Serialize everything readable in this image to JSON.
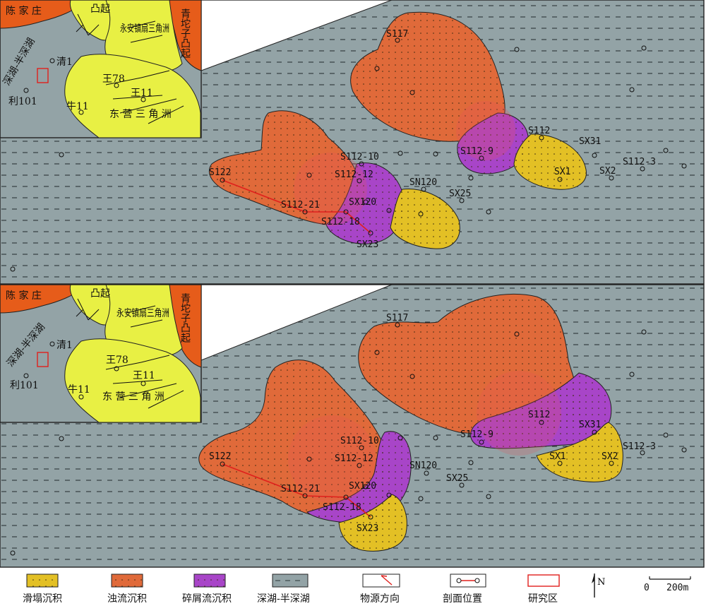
{
  "colors": {
    "lake": "#93a3a6",
    "slump": "#e3c025",
    "turbidite": "#e06a3a",
    "debris": "#a845c8",
    "uplift": "#e65c1a",
    "delta": "#e8f044",
    "frame": "#222222",
    "section_line": "#e0201c",
    "study_area": "#e0201c"
  },
  "inset_labels": {
    "chenjiazhuang": "陈 家 庄",
    "tuqi": "凸起",
    "qingtuozi": "青坨子凸起",
    "yongan": "永安镇扇三角洲",
    "shenhu": "深湖-半深湖",
    "qing1": "清1",
    "wang78": "王78",
    "wang11": "王11",
    "li101": "利101",
    "niu11": "牛11",
    "dongying": "东 营 三 角 洲"
  },
  "top_panel": {
    "wells": {
      "s117": "S117",
      "s112": "S112",
      "sx31": "SX31",
      "s112_9": "S112-9",
      "sx1": "SX1",
      "sx2": "SX2",
      "s112_3": "S112-3",
      "s112_10": "S112-10",
      "s122": "S122",
      "s112_12": "S112-12",
      "sn120": "SN120",
      "sx25": "SX25",
      "s112_21": "S112-21",
      "sx120": "SX120",
      "s112_18": "S112-18",
      "sx23": "SX23"
    }
  },
  "bottom_panel": {
    "wells": {
      "s117": "S117",
      "s112": "S112",
      "sx31": "SX31",
      "s112_9": "S112-9",
      "sx1": "SX1",
      "sx2": "SX2",
      "s112_3": "S112-3",
      "s112_10": "S112-10",
      "s122": "S122",
      "s112_12": "S112-12",
      "sn120": "SN120",
      "sx25": "SX25",
      "s112_21": "S112-21",
      "sx120": "SX120",
      "s112_18": "S112-18",
      "sx23": "SX23"
    }
  },
  "legend": {
    "slump": "滑塌沉积",
    "turbidite": "浊流沉积",
    "debris": "碎屑流沉积",
    "lake": "深湖-半深湖",
    "source": "物源方向",
    "section": "剖面位置",
    "study_area": "研究区",
    "north": "N",
    "scale_zero": "0",
    "scale_value": "200m"
  }
}
